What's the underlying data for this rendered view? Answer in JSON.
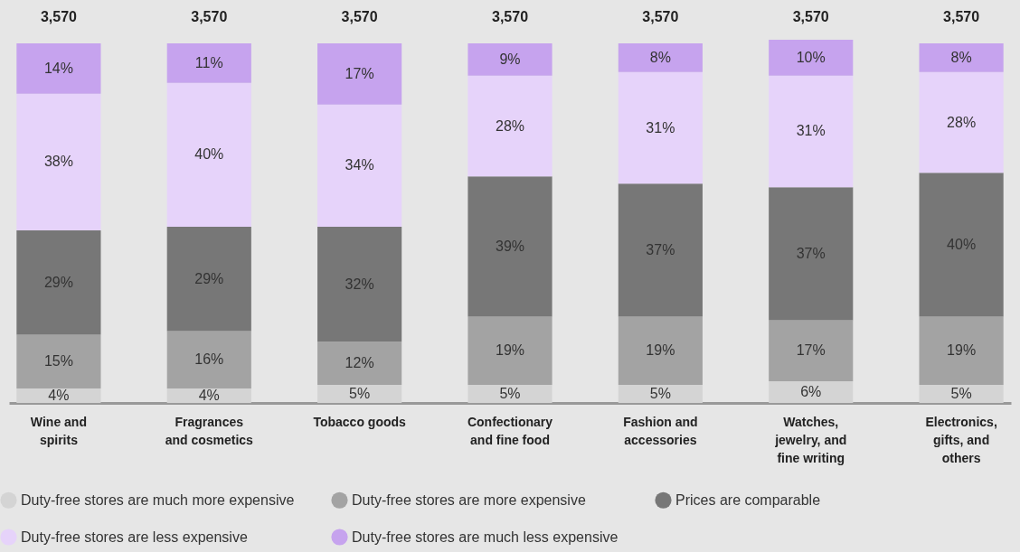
{
  "chart_data": {
    "type": "bar",
    "stacked": true,
    "legend": "bottom",
    "categories": [
      "Wine and spirits",
      "Fragrances and cosmetics",
      "Tobacco goods",
      "Confectionary and fine food",
      "Fashion and accessories",
      "Watches, jewelry, and fine writing",
      "Electronics, gifts, and others"
    ],
    "annotations": [
      "3,570",
      "3,570",
      "3,570",
      "3,570",
      "3,570",
      "3,570",
      "3,570"
    ],
    "series": [
      {
        "name": "Duty-free stores are much more expensive",
        "color": "#d4d4d4",
        "values": [
          4,
          4,
          5,
          5,
          5,
          6,
          5
        ],
        "value_labels": [
          "4%",
          "4%",
          "5%",
          "5%",
          "5%",
          "6%",
          "5%"
        ]
      },
      {
        "name": "Duty-free stores are more expensive",
        "color": "#a3a3a3",
        "values": [
          15,
          16,
          12,
          19,
          19,
          17,
          19
        ],
        "value_labels": [
          "15%",
          "16%",
          "12%",
          "19%",
          "19%",
          "17%",
          "19%"
        ]
      },
      {
        "name": "Prices are comparable",
        "color": "#777777",
        "values": [
          29,
          29,
          32,
          39,
          37,
          37,
          40
        ],
        "value_labels": [
          "29%",
          "29%",
          "32%",
          "39%",
          "37%",
          "37%",
          "40%"
        ]
      },
      {
        "name": "Duty-free stores are less expensive",
        "color": "#e6d3fa",
        "values": [
          38,
          40,
          34,
          28,
          31,
          31,
          28
        ],
        "value_labels": [
          "38%",
          "40%",
          "34%",
          "28%",
          "31%",
          "31%",
          "28%"
        ]
      },
      {
        "name": "Duty-free stores are much less expensive",
        "color": "#c6a3ee",
        "values": [
          14,
          11,
          17,
          9,
          8,
          10,
          8
        ],
        "value_labels": [
          "14%",
          "11%",
          "17%",
          "9%",
          "8%",
          "10%",
          "8%"
        ]
      }
    ]
  }
}
